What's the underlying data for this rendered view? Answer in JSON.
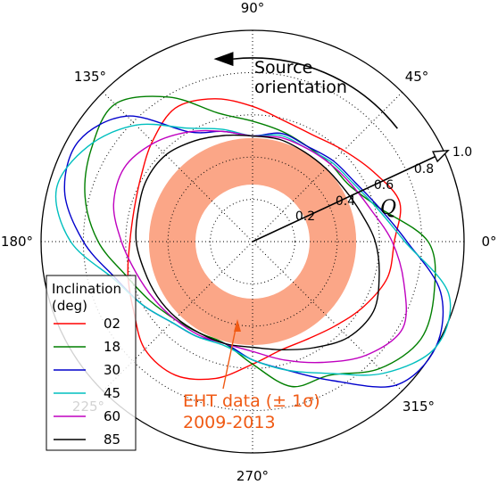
{
  "chart_data": {
    "type": "polar",
    "angle_ticks": [
      "0°",
      "45°",
      "90°",
      "135°",
      "180°",
      "225°",
      "270°",
      "315°"
    ],
    "radial_ticks": [
      "0.2",
      "0.4",
      "0.6",
      "0.8",
      "1.0"
    ],
    "rlim": [
      0,
      1.0
    ],
    "grid": true,
    "radial_axis_label": "Q",
    "source_orientation_label": [
      "Source",
      "orientation"
    ],
    "band": {
      "label_line1": "EHT data (± 1σ)",
      "label_line2": "2009-2013",
      "r_inner": 0.27,
      "r_outer": 0.49,
      "color": "#fba687"
    },
    "legend": {
      "title_line1": "Inclination",
      "title_line2": "(deg)",
      "placement": "lower-left"
    },
    "series": [
      {
        "name": "02",
        "color": "#ff0000",
        "theta": [
          0,
          15,
          30,
          45,
          60,
          75,
          90,
          105,
          120,
          135,
          150,
          165,
          180,
          195,
          210,
          225,
          240,
          255,
          270,
          285,
          300,
          315,
          330,
          345
        ],
        "r": [
          0.67,
          0.72,
          0.66,
          0.61,
          0.58,
          0.59,
          0.64,
          0.7,
          0.73,
          0.67,
          0.61,
          0.58,
          0.58,
          0.61,
          0.65,
          0.72,
          0.73,
          0.67,
          0.58,
          0.53,
          0.53,
          0.56,
          0.61,
          0.66
        ]
      },
      {
        "name": "18",
        "color": "#007f00",
        "theta": [
          0,
          15,
          30,
          45,
          60,
          75,
          90,
          105,
          120,
          135,
          150,
          165,
          180,
          195,
          210,
          225,
          240,
          255,
          270,
          285,
          300,
          315,
          330,
          345
        ],
        "r": [
          0.83,
          0.62,
          0.53,
          0.52,
          0.52,
          0.54,
          0.57,
          0.63,
          0.79,
          0.92,
          0.88,
          0.82,
          0.73,
          0.62,
          0.56,
          0.52,
          0.5,
          0.5,
          0.58,
          0.71,
          0.73,
          0.85,
          0.92,
          0.89
        ]
      },
      {
        "name": "30",
        "color": "#0000cc",
        "theta": [
          0,
          15,
          30,
          45,
          60,
          75,
          90,
          105,
          120,
          135,
          150,
          165,
          180,
          195,
          210,
          225,
          240,
          255,
          270,
          285,
          300,
          315,
          330,
          345
        ],
        "r": [
          0.73,
          0.62,
          0.56,
          0.54,
          0.52,
          0.53,
          0.5,
          0.54,
          0.6,
          0.84,
          0.95,
          0.92,
          0.8,
          0.67,
          0.6,
          0.54,
          0.52,
          0.5,
          0.56,
          0.63,
          0.76,
          0.96,
          1.0,
          0.92
        ]
      },
      {
        "name": "45",
        "color": "#00bfbf",
        "theta": [
          0,
          15,
          30,
          45,
          60,
          75,
          90,
          105,
          120,
          135,
          150,
          165,
          180,
          195,
          210,
          225,
          240,
          255,
          270,
          285,
          300,
          315,
          330,
          345
        ],
        "r": [
          0.72,
          0.61,
          0.55,
          0.53,
          0.51,
          0.52,
          0.5,
          0.55,
          0.62,
          0.78,
          0.9,
          0.96,
          0.86,
          0.68,
          0.6,
          0.54,
          0.52,
          0.51,
          0.56,
          0.63,
          0.72,
          0.88,
          1.0,
          0.96
        ]
      },
      {
        "name": "60",
        "color": "#bf00bf",
        "theta": [
          0,
          15,
          30,
          45,
          60,
          75,
          90,
          105,
          120,
          135,
          150,
          165,
          180,
          195,
          210,
          225,
          240,
          255,
          270,
          285,
          300,
          315,
          330,
          345
        ],
        "r": [
          0.66,
          0.58,
          0.54,
          0.52,
          0.51,
          0.51,
          0.5,
          0.54,
          0.6,
          0.66,
          0.7,
          0.68,
          0.62,
          0.57,
          0.54,
          0.52,
          0.51,
          0.5,
          0.52,
          0.58,
          0.66,
          0.76,
          0.82,
          0.74
        ]
      },
      {
        "name": "85",
        "color": "#000000",
        "theta": [
          0,
          15,
          30,
          45,
          60,
          75,
          90,
          105,
          120,
          135,
          150,
          165,
          180,
          195,
          210,
          225,
          240,
          255,
          270,
          285,
          300,
          315,
          330,
          345
        ],
        "r": [
          0.58,
          0.53,
          0.5,
          0.49,
          0.49,
          0.5,
          0.5,
          0.52,
          0.55,
          0.58,
          0.58,
          0.56,
          0.55,
          0.53,
          0.52,
          0.51,
          0.5,
          0.5,
          0.5,
          0.53,
          0.58,
          0.64,
          0.66,
          0.62
        ]
      }
    ],
    "arrow": {
      "r_tip": 1.02,
      "theta_deg": 25
    }
  }
}
